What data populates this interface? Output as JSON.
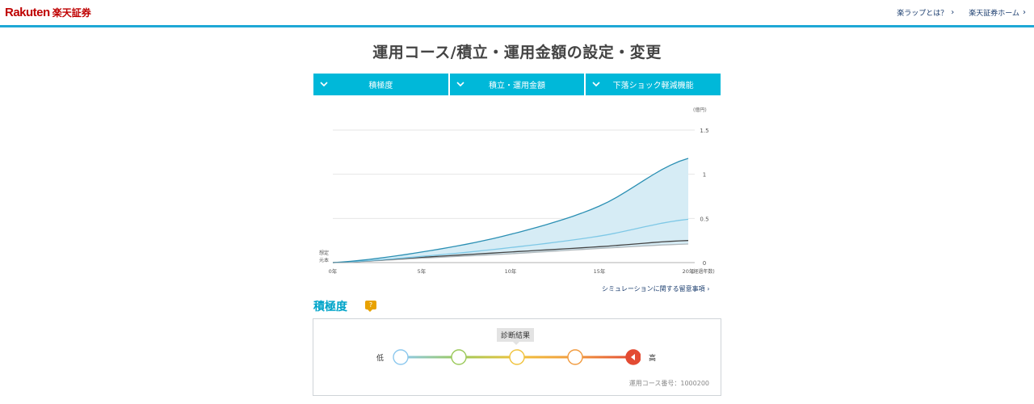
{
  "header": {
    "logo_text": "Rakuten",
    "logo_jp": "楽天証券",
    "links": [
      {
        "label": "楽ラップとは？"
      },
      {
        "label": "楽天証券ホーム"
      }
    ]
  },
  "page_title": "運用コース/積立・運用金額の設定・変更",
  "tabs": [
    {
      "label": "積極度"
    },
    {
      "label": "積立・運用金額"
    },
    {
      "label": "下落ショック軽減機能"
    }
  ],
  "chart": {
    "unit_label": "(億円)",
    "start_label_line1": "想定",
    "start_label_line2": "元本",
    "x_axis_label": "(経過年数)"
  },
  "chart_data": {
    "type": "line",
    "x": [
      0,
      5,
      10,
      15,
      20
    ],
    "x_tick_labels": [
      "0年",
      "5年",
      "10年",
      "15年",
      "20年"
    ],
    "y_tick_labels": [
      "0",
      "0.5",
      "1",
      "1.5"
    ],
    "ylim": [
      0,
      1.5
    ],
    "xlim": [
      0,
      20
    ],
    "series": [
      {
        "values": [
          0,
          0.12,
          0.32,
          0.64,
          1.18
        ],
        "color": "#2a8fb3"
      },
      {
        "values": [
          0,
          0.07,
          0.17,
          0.3,
          0.49
        ],
        "color": "#7ec8e6"
      },
      {
        "values": [
          0,
          0.06,
          0.12,
          0.18,
          0.25
        ],
        "color": "#444444"
      },
      {
        "values": [
          0,
          0.05,
          0.1,
          0.16,
          0.21
        ],
        "color": "#b0b8bc"
      }
    ],
    "band_between": [
      0,
      3
    ],
    "band_color": "#d6ecf5",
    "grid": true
  },
  "sim_link": "シミュレーションに関する留意事項",
  "risk": {
    "section_title": "積極度",
    "help_icon": "?",
    "diagnosis_label": "診断結果",
    "low_label": "低",
    "high_label": "高",
    "selected_level": 5,
    "levels": 5,
    "course_number": "運用コース番号：1000200",
    "colors": [
      "#8cc8ee",
      "#9bc95a",
      "#f0c23b",
      "#f19a3e",
      "#e34b33"
    ]
  }
}
